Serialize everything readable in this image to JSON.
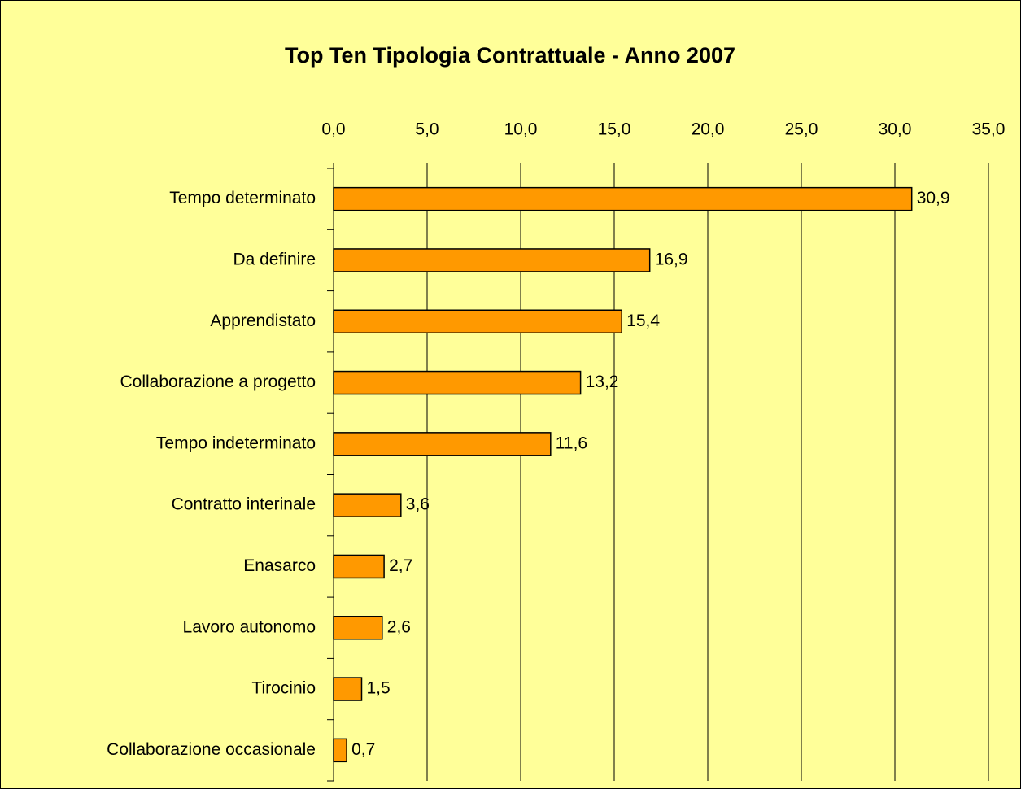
{
  "chart_data": {
    "type": "barh",
    "title": "Top Ten Tipologia Contrattuale - Anno 2007",
    "categories": [
      "Tempo determinato",
      "Da definire",
      "Apprendistato",
      "Collaborazione a progetto",
      "Tempo indeterminato",
      "Contratto interinale",
      "Enasarco",
      "Lavoro autonomo",
      "Tirocinio",
      "Collaborazione occasionale"
    ],
    "values": [
      30.9,
      16.9,
      15.4,
      13.2,
      11.6,
      3.6,
      2.7,
      2.6,
      1.5,
      0.7
    ],
    "value_labels": [
      "30,9",
      "16,9",
      "15,4",
      "13,2",
      "11,6",
      "3,6",
      "2,7",
      "2,6",
      "1,5",
      "0,7"
    ],
    "color": "#ff9900",
    "xlim": [
      0,
      35
    ],
    "xticks": [
      {
        "value": 0,
        "label": "0,0"
      },
      {
        "value": 5,
        "label": "5,0"
      },
      {
        "value": 10,
        "label": "10,0"
      },
      {
        "value": 15,
        "label": "15,0"
      },
      {
        "value": 20,
        "label": "20,0"
      },
      {
        "value": 25,
        "label": "25,0"
      },
      {
        "value": 30,
        "label": "30,0"
      },
      {
        "value": 35,
        "label": "35,0"
      }
    ],
    "grid": true
  }
}
